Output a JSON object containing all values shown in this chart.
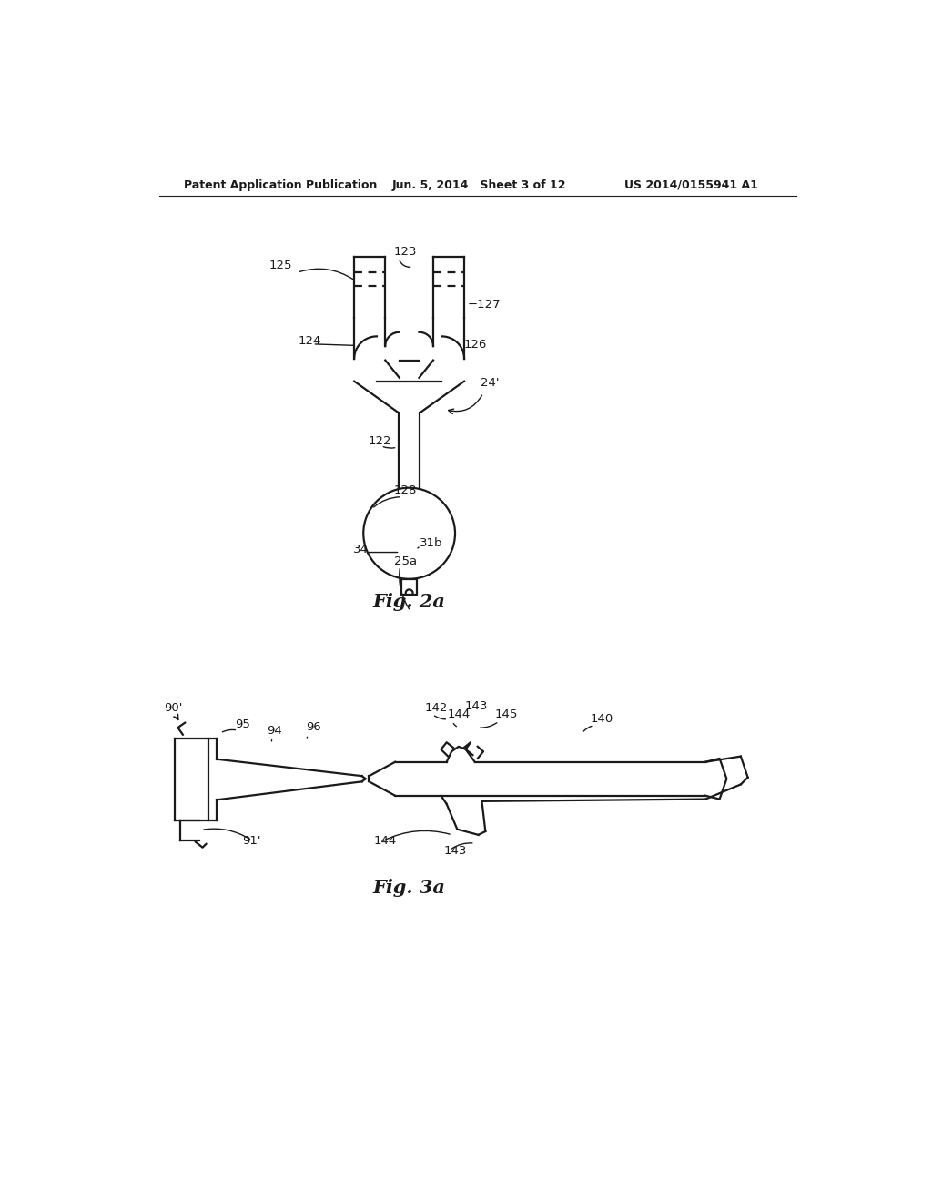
{
  "background_color": "#ffffff",
  "header_left": "Patent Application Publication",
  "header_center": "Jun. 5, 2014   Sheet 3 of 12",
  "header_right": "US 2014/0155941 A1",
  "fig2a_title": "Fig. 2a",
  "fig3a_title": "Fig. 3a",
  "line_color": "#1a1a1a",
  "text_color": "#1a1a1a",
  "label_fontsize": 9.5,
  "header_fontsize": 9.0,
  "fig_title_fontsize": 15
}
